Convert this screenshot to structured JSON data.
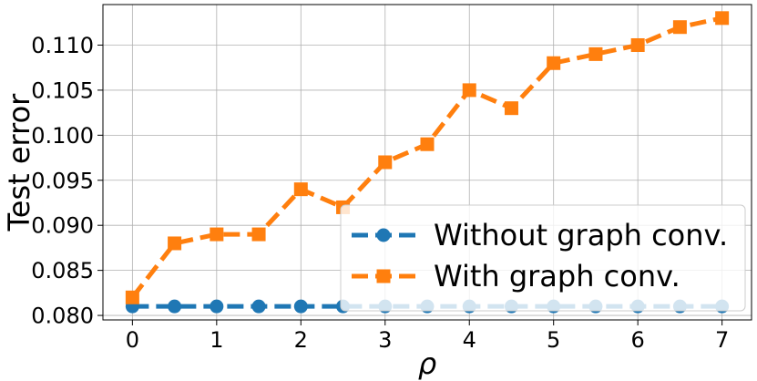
{
  "chart_data": {
    "type": "line",
    "xlabel": "ρ",
    "ylabel": "Test error",
    "xlim": [
      -0.35,
      7.35
    ],
    "ylim": [
      0.0795,
      0.1145
    ],
    "xticks": [
      0,
      1,
      2,
      3,
      4,
      5,
      6,
      7
    ],
    "yticks": [
      0.08,
      0.085,
      0.09,
      0.095,
      0.1,
      0.105,
      0.11
    ],
    "ytick_labels": [
      "0.080",
      "0.085",
      "0.090",
      "0.095",
      "0.100",
      "0.105",
      "0.110"
    ],
    "grid": true,
    "legend_position": "lower-right",
    "x": [
      0,
      0.5,
      1,
      1.5,
      2,
      2.5,
      3,
      3.5,
      4,
      4.5,
      5,
      5.5,
      6,
      6.5,
      7
    ],
    "series": [
      {
        "name": "Without graph conv.",
        "color": "#1f77b4",
        "marker": "circle",
        "values": [
          0.081,
          0.081,
          0.081,
          0.081,
          0.081,
          0.081,
          0.081,
          0.081,
          0.081,
          0.081,
          0.081,
          0.081,
          0.081,
          0.081,
          0.081
        ]
      },
      {
        "name": "With graph conv.",
        "color": "#ff7f0e",
        "marker": "square",
        "values": [
          0.082,
          0.088,
          0.089,
          0.089,
          0.094,
          0.092,
          0.097,
          0.099,
          0.105,
          0.103,
          0.108,
          0.109,
          0.11,
          0.112,
          0.113
        ]
      }
    ]
  }
}
